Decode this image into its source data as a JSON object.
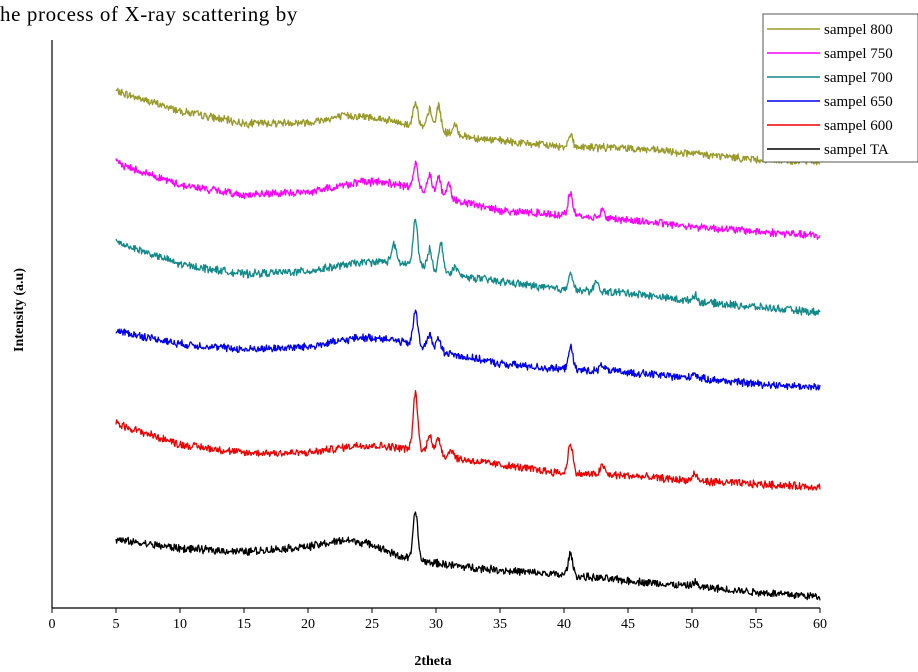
{
  "caption_fragment": "he process of X-ray scattering by",
  "chart_data": {
    "type": "line",
    "title": "",
    "xlabel": "2theta",
    "ylabel": "Intensity (a.u)",
    "xlim": [
      0,
      60
    ],
    "ylim": [
      0,
      100
    ],
    "xticks": [
      "0",
      "5",
      "10",
      "15",
      "20",
      "25",
      "30",
      "35",
      "40",
      "45",
      "50",
      "55",
      "60"
    ],
    "grid": false,
    "legend_position": "top-right",
    "noise_amplitude": 0.6,
    "series": [
      {
        "name": "sampel 800",
        "color": "#999a2a",
        "points": [
          [
            5,
            91
          ],
          [
            10,
            87.5
          ],
          [
            15,
            85.3
          ],
          [
            20,
            85.5
          ],
          [
            23,
            86.7
          ],
          [
            25,
            86.4
          ],
          [
            27,
            85.5
          ],
          [
            30,
            84
          ],
          [
            33,
            82.8
          ],
          [
            36,
            82
          ],
          [
            40,
            81.2
          ],
          [
            45,
            81
          ],
          [
            50,
            80
          ],
          [
            55,
            79
          ],
          [
            60,
            78.5
          ]
        ],
        "peaks": [
          [
            28.4,
            4.5
          ],
          [
            29.5,
            3.5
          ],
          [
            30.2,
            4.5
          ],
          [
            31.5,
            1.5
          ],
          [
            40.5,
            2.2
          ]
        ]
      },
      {
        "name": "sampel 750",
        "color": "#ff00ff",
        "points": [
          [
            5,
            78.4
          ],
          [
            10,
            74.5
          ],
          [
            15,
            72.7
          ],
          [
            20,
            73.2
          ],
          [
            24,
            75
          ],
          [
            26,
            75
          ],
          [
            28,
            74
          ],
          [
            31,
            72
          ],
          [
            35,
            70
          ],
          [
            40,
            69.2
          ],
          [
            45,
            68.3
          ],
          [
            50,
            67.2
          ],
          [
            55,
            66.3
          ],
          [
            60,
            65.5
          ]
        ],
        "peaks": [
          [
            28.4,
            4.5
          ],
          [
            29.5,
            3.5
          ],
          [
            30.2,
            3.5
          ],
          [
            31,
            2.5
          ],
          [
            40.5,
            3.8
          ],
          [
            43,
            1.4
          ]
        ]
      },
      {
        "name": "sampel 700",
        "color": "#138a8a",
        "points": [
          [
            5,
            64.5
          ],
          [
            10,
            60.5
          ],
          [
            15,
            58.8
          ],
          [
            20,
            59.3
          ],
          [
            24,
            60.8
          ],
          [
            26,
            61
          ],
          [
            28,
            60.5
          ],
          [
            31,
            58.7
          ],
          [
            35,
            57.5
          ],
          [
            40,
            56
          ],
          [
            45,
            55.5
          ],
          [
            50,
            54
          ],
          [
            55,
            53
          ],
          [
            60,
            52
          ]
        ],
        "peaks": [
          [
            26.7,
            3.2
          ],
          [
            28.4,
            8
          ],
          [
            29.5,
            3.5
          ],
          [
            30.4,
            5
          ],
          [
            31.5,
            1.5
          ],
          [
            40.5,
            3.2
          ],
          [
            42.5,
            1.5
          ],
          [
            50.2,
            1.2
          ]
        ]
      },
      {
        "name": "sampel 650",
        "color": "#0000ee",
        "points": [
          [
            5,
            48.8
          ],
          [
            10,
            46.5
          ],
          [
            15,
            45.5
          ],
          [
            20,
            46
          ],
          [
            24,
            47.6
          ],
          [
            26,
            47.5
          ],
          [
            28,
            46.5
          ],
          [
            31,
            44.8
          ],
          [
            35,
            43
          ],
          [
            40,
            42
          ],
          [
            45,
            41.5
          ],
          [
            50,
            40.5
          ],
          [
            55,
            39.5
          ],
          [
            60,
            38.8
          ]
        ],
        "peaks": [
          [
            28.4,
            6
          ],
          [
            29.5,
            2.5
          ],
          [
            30.2,
            2
          ],
          [
            40.5,
            4
          ],
          [
            43,
            1.2
          ],
          [
            50.2,
            1
          ]
        ]
      },
      {
        "name": "sampel 600",
        "color": "#ee0000",
        "points": [
          [
            5,
            32.5
          ],
          [
            10,
            28.8
          ],
          [
            15,
            27.3
          ],
          [
            20,
            27.3
          ],
          [
            24,
            28.7
          ],
          [
            26,
            28.5
          ],
          [
            28,
            28
          ],
          [
            31,
            26.5
          ],
          [
            35,
            25.2
          ],
          [
            40,
            23.7
          ],
          [
            45,
            23.3
          ],
          [
            50,
            22.4
          ],
          [
            55,
            21.8
          ],
          [
            60,
            21.3
          ]
        ],
        "peaks": [
          [
            28.4,
            10
          ],
          [
            29.5,
            3.5
          ],
          [
            30.2,
            3
          ],
          [
            31.2,
            1.5
          ],
          [
            40.5,
            5.5
          ],
          [
            43,
            1.6
          ],
          [
            50.2,
            1.2
          ]
        ]
      },
      {
        "name": "sampel TA",
        "color": "#000000",
        "points": [
          [
            5,
            12
          ],
          [
            10,
            10.5
          ],
          [
            15,
            9.9
          ],
          [
            20,
            10.8
          ],
          [
            23,
            12
          ],
          [
            25,
            11.2
          ],
          [
            27,
            9.2
          ],
          [
            29,
            8.2
          ],
          [
            32,
            7.3
          ],
          [
            36,
            6.5
          ],
          [
            40,
            5.8
          ],
          [
            45,
            4.8
          ],
          [
            50,
            3.8
          ],
          [
            55,
            2.8
          ],
          [
            60,
            2
          ]
        ],
        "peaks": [
          [
            28.4,
            8.5
          ],
          [
            40.5,
            3.8
          ],
          [
            50.2,
            0.8
          ]
        ]
      }
    ]
  }
}
